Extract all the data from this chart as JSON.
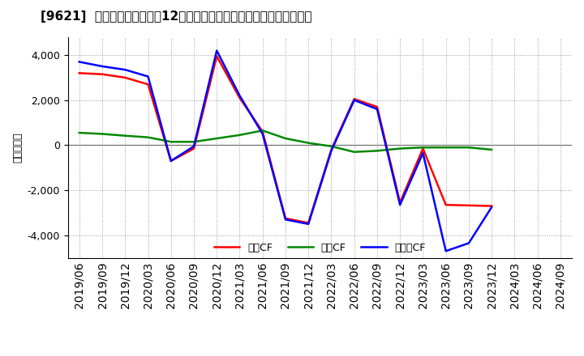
{
  "title": "[9621]  キャッシュフローの12か月移動合計の対前年同期増減額の推移",
  "ylabel": "（百万円）",
  "background_color": "#ffffff",
  "grid_color": "#999999",
  "dates": [
    "2019/06",
    "2019/09",
    "2019/12",
    "2020/03",
    "2020/06",
    "2020/09",
    "2020/12",
    "2021/03",
    "2021/06",
    "2021/09",
    "2021/12",
    "2022/03",
    "2022/06",
    "2022/09",
    "2022/12",
    "2023/03",
    "2023/06",
    "2023/09",
    "2023/12",
    "2024/03",
    "2024/06",
    "2024/09"
  ],
  "operating_cf": [
    3200,
    3150,
    3000,
    2700,
    -700,
    -150,
    3950,
    2100,
    600,
    -3250,
    -3450,
    -200,
    2050,
    1700,
    -2550,
    -150,
    -2650,
    null,
    -2700,
    null,
    null,
    null
  ],
  "investing_cf": [
    550,
    500,
    420,
    350,
    150,
    150,
    300,
    450,
    650,
    300,
    100,
    -50,
    -300,
    -250,
    -150,
    -100,
    -100,
    -100,
    -200,
    null,
    null,
    null
  ],
  "free_cf": [
    3700,
    3500,
    3350,
    3050,
    -700,
    -50,
    4200,
    2200,
    500,
    -3300,
    -3500,
    -250,
    2000,
    1600,
    -2650,
    -350,
    -4700,
    -4350,
    -2750,
    null,
    null,
    null
  ],
  "ylim": [
    -5000,
    4800
  ],
  "yticks": [
    -4000,
    -2000,
    0,
    2000,
    4000
  ],
  "line_colors": {
    "operating": "#ff0000",
    "investing": "#008800",
    "free": "#0000ff"
  },
  "legend_labels": [
    "営業CF",
    "投資CF",
    "フリーCF"
  ]
}
